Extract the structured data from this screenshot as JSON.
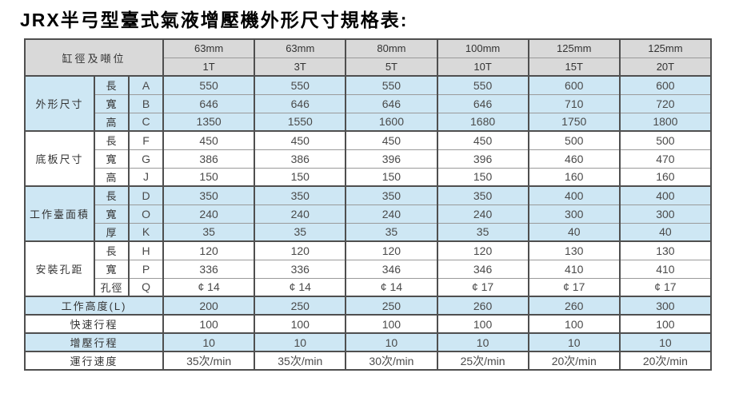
{
  "title": "JRX半弓型臺式氣液增壓機外形尺寸規格表:",
  "colors": {
    "shaded_row": "#cee7f4",
    "header_bg": "#d9d9d9",
    "border_dark": "#4f4f4f",
    "border_light": "#9a9a9a"
  },
  "table": {
    "corner_label": "缸徑及噸位",
    "columns": [
      {
        "diameter": "63mm",
        "tonnage": "1T"
      },
      {
        "diameter": "63mm",
        "tonnage": "3T"
      },
      {
        "diameter": "80mm",
        "tonnage": "5T"
      },
      {
        "diameter": "100mm",
        "tonnage": "10T"
      },
      {
        "diameter": "125mm",
        "tonnage": "15T"
      },
      {
        "diameter": "125mm",
        "tonnage": "20T"
      }
    ],
    "groups": [
      {
        "name": "外形尺寸",
        "shaded": true,
        "rows": [
          {
            "dim": "長",
            "letter": "A",
            "values": [
              "550",
              "550",
              "550",
              "550",
              "600",
              "600"
            ]
          },
          {
            "dim": "寬",
            "letter": "B",
            "values": [
              "646",
              "646",
              "646",
              "646",
              "710",
              "720"
            ]
          },
          {
            "dim": "高",
            "letter": "C",
            "values": [
              "1350",
              "1550",
              "1600",
              "1680",
              "1750",
              "1800"
            ]
          }
        ]
      },
      {
        "name": "底板尺寸",
        "shaded": false,
        "rows": [
          {
            "dim": "長",
            "letter": "F",
            "values": [
              "450",
              "450",
              "450",
              "450",
              "500",
              "500"
            ]
          },
          {
            "dim": "寬",
            "letter": "G",
            "values": [
              "386",
              "386",
              "396",
              "396",
              "460",
              "470"
            ]
          },
          {
            "dim": "高",
            "letter": "J",
            "values": [
              "150",
              "150",
              "150",
              "150",
              "160",
              "160"
            ]
          }
        ]
      },
      {
        "name": "工作臺面積",
        "shaded": true,
        "rows": [
          {
            "dim": "長",
            "letter": "D",
            "values": [
              "350",
              "350",
              "350",
              "350",
              "400",
              "400"
            ]
          },
          {
            "dim": "寬",
            "letter": "O",
            "values": [
              "240",
              "240",
              "240",
              "240",
              "300",
              "300"
            ]
          },
          {
            "dim": "厚",
            "letter": "K",
            "values": [
              "35",
              "35",
              "35",
              "35",
              "40",
              "40"
            ]
          }
        ]
      },
      {
        "name": "安裝孔距",
        "shaded": false,
        "rows": [
          {
            "dim": "長",
            "letter": "H",
            "values": [
              "120",
              "120",
              "120",
              "120",
              "130",
              "130"
            ]
          },
          {
            "dim": "寬",
            "letter": "P",
            "values": [
              "336",
              "336",
              "346",
              "346",
              "410",
              "410"
            ]
          },
          {
            "dim": "孔徑",
            "letter": "Q",
            "values": [
              "¢ 14",
              "¢ 14",
              "¢ 14",
              "¢ 17",
              "¢ 17",
              "¢ 17"
            ]
          }
        ]
      }
    ],
    "footer_rows": [
      {
        "label": "工作高度(L)",
        "shaded": true,
        "values": [
          "200",
          "250",
          "250",
          "260",
          "260",
          "300"
        ]
      },
      {
        "label": "快速行程",
        "shaded": false,
        "values": [
          "100",
          "100",
          "100",
          "100",
          "100",
          "100"
        ]
      },
      {
        "label": "增壓行程",
        "shaded": true,
        "values": [
          "10",
          "10",
          "10",
          "10",
          "10",
          "10"
        ]
      },
      {
        "label": "運行速度",
        "shaded": false,
        "values": [
          "35次/min",
          "35次/min",
          "30次/min",
          "25次/min",
          "20次/min",
          "20次/min"
        ]
      }
    ]
  }
}
